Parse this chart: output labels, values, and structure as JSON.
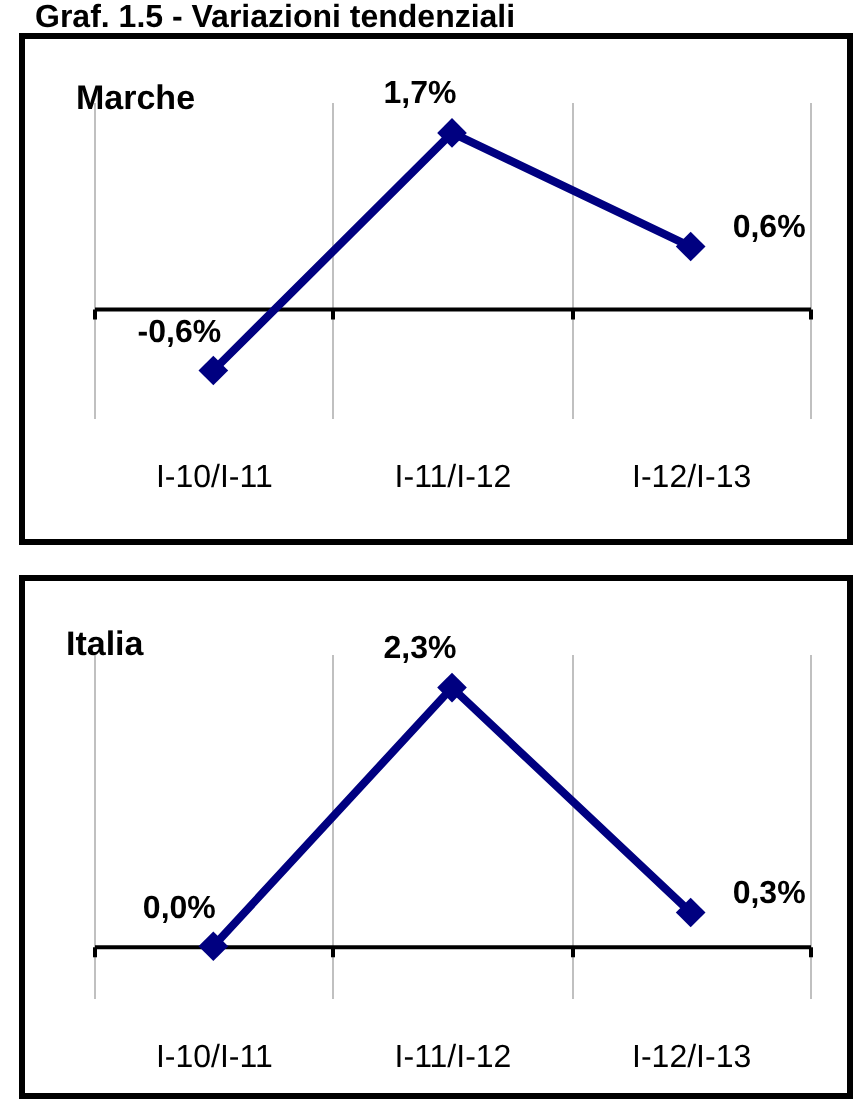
{
  "chart_data": [
    {
      "type": "line",
      "title": "Graf. 1.5 - Variazioni tendenziali",
      "subtitle": "Marche",
      "categories": [
        "I-10/I-11",
        "I-11/I-12",
        "I-12/I-13"
      ],
      "series": [
        {
          "color": "#000080",
          "values": [
            -0.6,
            1.7,
            0.6
          ],
          "value_labels": [
            "-0,6%",
            "1,7%",
            "0,6%"
          ]
        }
      ],
      "marker": "diamond",
      "line_style": "solid",
      "grid": "x",
      "tick_labels": "x"
    },
    {
      "type": "line",
      "subtitle": "Italia",
      "categories": [
        "I-10/I-11",
        "I-11/I-12",
        "I-12/I-13"
      ],
      "series": [
        {
          "color": "#000080",
          "values": [
            0.0,
            2.3,
            0.3
          ],
          "value_labels": [
            "0,0%",
            "2,3%",
            "0,3%"
          ]
        }
      ],
      "marker": "diamond",
      "line_style": "solid",
      "grid": "x",
      "tick_labels": "x"
    }
  ]
}
